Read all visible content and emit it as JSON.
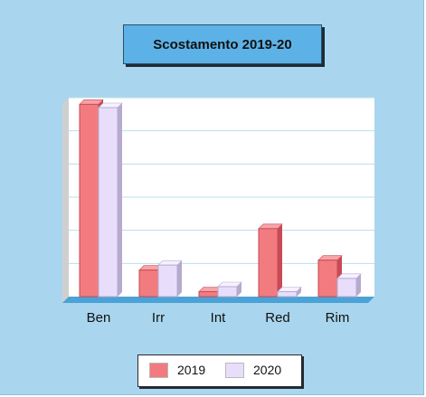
{
  "chart_data": {
    "type": "bar",
    "title": "Scostamento 2019-20",
    "categories": [
      "Ben",
      "Irr",
      "Int",
      "Red",
      "Rim"
    ],
    "series": [
      {
        "name": "2019",
        "values": [
          58,
          8,
          1.5,
          20.5,
          11
        ]
      },
      {
        "name": "2020",
        "values": [
          57,
          9.5,
          3,
          1.5,
          5.5
        ]
      }
    ],
    "ylim": [
      0,
      60
    ],
    "grid": true,
    "legend": "bottom",
    "colors": {
      "2019_front": "#f27b7f",
      "2019_side": "#c74a55",
      "2019_top": "#f7a3a7",
      "2020_front": "#e8defc",
      "2020_side": "#b6aace",
      "2020_top": "#f6f1ff",
      "background": "#a9d6ee",
      "title_box": "#5cb2e6",
      "plot_bg": "#ffffff",
      "grid": "#b9dfe9",
      "left_wall": "#cfcfcf",
      "floor": "#4aa2d6"
    }
  },
  "legend": {
    "label_2019": "2019",
    "label_2020": "2020"
  }
}
